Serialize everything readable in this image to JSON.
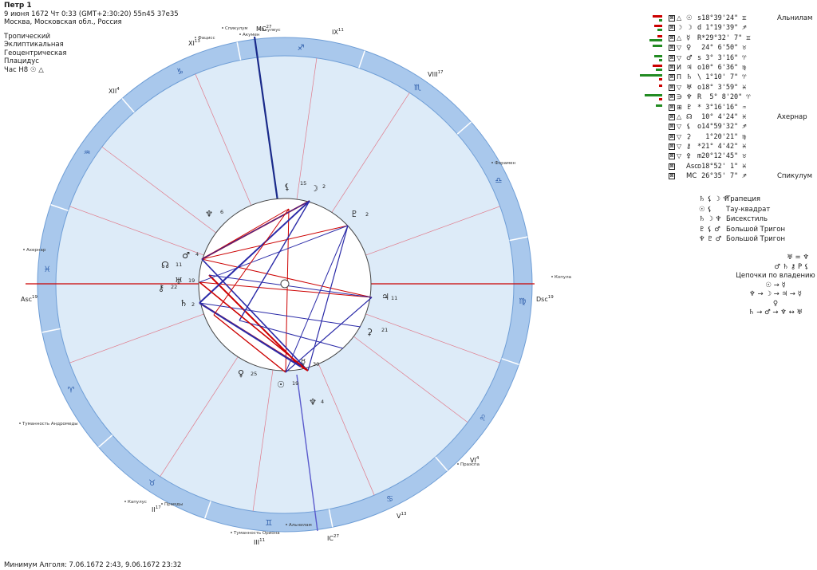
{
  "header": {
    "title": "Петр 1",
    "datetime": "9 июня 1672  Чт   0:33 (GMT+2:30:20) 55n45  37e35",
    "place": "Москва, Московская обл., Россия",
    "settings": [
      "Тропический",
      "Эклиптикальная",
      "Геоцентрическая",
      "Плацидус",
      "Час Н8 ☉ △"
    ]
  },
  "footer": {
    "text": "Минимум Алголя: 7.06.1672  2:43,  9.06.1672 23:32"
  },
  "houses": [
    {
      "label": "Asc",
      "sup": "19"
    },
    {
      "label": "II",
      "sup": "17"
    },
    {
      "label": "III",
      "sup": "11"
    },
    {
      "label": "IC",
      "sup": "27"
    },
    {
      "label": "V",
      "sup": "13"
    },
    {
      "label": "VI",
      "sup": "4"
    },
    {
      "label": "Dsc",
      "sup": "19"
    },
    {
      "label": "VIII",
      "sup": "17"
    },
    {
      "label": "IX",
      "sup": "11"
    },
    {
      "label": "MC",
      "sup": "27"
    },
    {
      "label": "XI",
      "sup": "13"
    },
    {
      "label": "XII",
      "sup": "4"
    }
  ],
  "zodiac_signs": [
    "♓",
    "♈",
    "♉",
    "♊",
    "♋",
    "♌",
    "♍",
    "♎",
    "♏",
    "♐",
    "♑",
    "♒"
  ],
  "fixed_stars": [
    "Спикулум",
    "Акулеус",
    "Акумен",
    "Фацисс",
    "Форамен",
    "Копула",
    "Ахернар",
    "Туманность Андромеды",
    "Капулус",
    "Прамды",
    "Туманность Ориона",
    "Альнилам",
    "Праэспа"
  ],
  "chart_planets": [
    {
      "glyph": "⚸",
      "deg": "15"
    },
    {
      "glyph": "☽",
      "deg": "2",
      "color": "#cc0000"
    },
    {
      "glyph": "♇",
      "deg": "2"
    },
    {
      "glyph": "♆",
      "deg": "6"
    },
    {
      "glyph": "♂",
      "deg": "4"
    },
    {
      "glyph": "☊",
      "deg": "11"
    },
    {
      "glyph": "♅",
      "deg": "19"
    },
    {
      "glyph": "⚷",
      "deg": "22"
    },
    {
      "glyph": "♄",
      "deg": "2"
    },
    {
      "glyph": "♀",
      "deg": "25"
    },
    {
      "glyph": "☉",
      "deg": "19",
      "color": "#cc0000"
    },
    {
      "glyph": "☿",
      "deg": "30"
    },
    {
      "glyph": "♆",
      "deg": "4"
    },
    {
      "glyph": "♃",
      "deg": "11"
    },
    {
      "glyph": "⚳",
      "deg": "21"
    }
  ],
  "planet_table": [
    {
      "b2": "△",
      "glyph": "☉",
      "pos": "s18°39'24\" ♊",
      "star": "Альнилам",
      "bars": [
        {
          "c": "#cc0000",
          "w": 12
        },
        {
          "c": "#228b22",
          "w": 4
        }
      ]
    },
    {
      "b2": "☽",
      "glyph": "☽",
      "pos": "d 1°19'39\" ♐",
      "star": "",
      "bars": [
        {
          "c": "#cc0000",
          "w": 10
        },
        {
          "c": "#228b22",
          "w": 6
        }
      ]
    },
    {
      "b2": "△",
      "glyph": "☿",
      "pos": "R*29°32' 7\" ♊",
      "star": "",
      "bars": [
        {
          "c": "#cc0000",
          "w": 6
        },
        {
          "c": "#228b22",
          "w": 16
        }
      ]
    },
    {
      "b2": "▽",
      "glyph": "♀",
      "pos": " 24° 6'50\" ♉",
      "star": "",
      "bars": [
        {
          "c": "#228b22",
          "w": 12
        },
        {
          "c": "#228b22",
          "w": 0
        }
      ]
    },
    {
      "b2": "▽",
      "glyph": "♂",
      "pos": "s 3° 3'16\" ♈",
      "star": "",
      "bars": [
        {
          "c": "#228b22",
          "w": 10
        },
        {
          "c": "#228b22",
          "w": 4
        }
      ]
    },
    {
      "b2": "И",
      "glyph": "♃",
      "pos": "o10° 6'36\" ♍",
      "star": "",
      "bars": [
        {
          "c": "#cc0000",
          "w": 12
        },
        {
          "c": "#228b22",
          "w": 8
        }
      ]
    },
    {
      "b2": "П",
      "glyph": "♄",
      "pos": "\\ 1°10' 7\" ♈",
      "star": "",
      "bars": [
        {
          "c": "#228b22",
          "w": 28
        },
        {
          "c": "#cc0000",
          "w": 4
        }
      ]
    },
    {
      "b2": "▽",
      "glyph": "♅",
      "pos": "o18° 3'59\" ♓",
      "star": "",
      "bars": [
        {
          "c": "#cc0000",
          "w": 4
        },
        {
          "c": "#228b22",
          "w": 0
        }
      ]
    },
    {
      "b2": "∋",
      "glyph": "♆",
      "pos": "R  5° 8'20\" ♈",
      "star": "",
      "bars": [
        {
          "c": "#228b22",
          "w": 22
        },
        {
          "c": "#cc0000",
          "w": 4
        }
      ]
    },
    {
      "b2": "⊞",
      "glyph": "♇",
      "pos": "* 3°16'16\" ♒",
      "star": "",
      "bars": [
        {
          "c": "#228b22",
          "w": 8
        },
        {
          "c": "#228b22",
          "w": 0
        }
      ]
    },
    {
      "b2": "△",
      "glyph": "☊",
      "pos": " 10° 4'24\" ♓",
      "star": "Ахернар",
      "bars": []
    },
    {
      "b2": "▽",
      "glyph": "⚸",
      "pos": "o14°59'32\" ♐",
      "star": "",
      "bars": []
    },
    {
      "b2": "▽",
      "glyph": "⚳",
      "pos": "  1°20'21\" ♍",
      "star": "",
      "bars": []
    },
    {
      "b2": "▽",
      "glyph": "⚷",
      "pos": "*21° 4'42\" ♓",
      "star": "",
      "bars": []
    },
    {
      "b2": "▽",
      "glyph": "⚴",
      "pos": "m20°12'45\" ♉",
      "star": "",
      "bars": []
    },
    {
      "b2": "",
      "glyph": "Asc",
      "pos": "o18°52' 1\" ♓",
      "star": "",
      "bars": []
    },
    {
      "b2": "",
      "glyph": "MC",
      "pos": " 26°35' 7\" ♐",
      "star": "Спикулум",
      "bars": []
    }
  ],
  "aspect_figures": [
    {
      "symbols": "♄ ⚸ ☽ ♆",
      "name": "Трапеция"
    },
    {
      "symbols": "☉ ⚸",
      "name": "Тау-квадрат"
    },
    {
      "symbols": "♄ ☽ ♆",
      "name": "Бисекстиль"
    },
    {
      "symbols": "♇ ⚸ ♂",
      "name": "Большой Тригон"
    },
    {
      "symbols": "♆ ♇ ♂",
      "name": "Большой Тригон"
    }
  ],
  "chains": {
    "lines_top": [
      "♅ = ♆",
      "♂ ♄ ⚷ P ⚸"
    ],
    "title": "Цепочки по владению",
    "lines": [
      "☉ → ☿",
      "♆ → ☽ → ♃ → ☿",
      "♀",
      "♄ → ♂ → ♆ ↔ ♅"
    ]
  },
  "colors": {
    "ring": "#a9c8ec",
    "inner": "#ddebf8",
    "axis": "#cc0000",
    "blue_aspect": "#2a2aa8",
    "red_aspect": "#cc0000"
  }
}
